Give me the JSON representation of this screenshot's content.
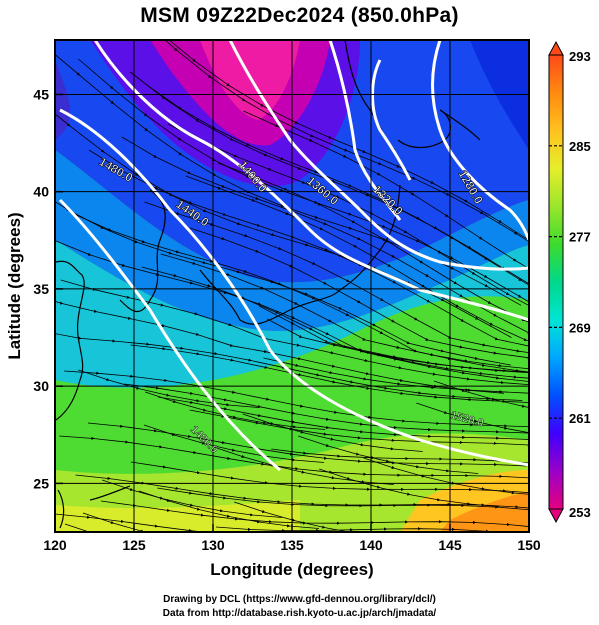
{
  "title": "MSM 09Z22Dec2024 (850.0hPa)",
  "xlabel": "Longitude (degrees)",
  "ylabel": "Latitude  (degrees)",
  "x_ticks": [
    "120",
    "125",
    "130",
    "135",
    "140",
    "145",
    "150"
  ],
  "y_ticks": [
    "25",
    "30",
    "35",
    "40",
    "45"
  ],
  "colorbar": {
    "min": 253,
    "max": 293,
    "ticks": [
      "261",
      "269",
      "277",
      "285"
    ],
    "max_label": "293",
    "min_label": "253",
    "colors": [
      "#e6007e",
      "#9a00c8",
      "#3f00ff",
      "#0050ff",
      "#00a6ff",
      "#00e5d5",
      "#00d88a",
      "#3ddc2c",
      "#9ae62b",
      "#e6ee2a",
      "#ffc21f",
      "#ff8a10",
      "#ff4a1a"
    ]
  },
  "contour_labels": [
    "1480.0",
    "1440.0",
    "1400.0",
    "1360.0",
    "1320.0",
    "1280.0",
    "1480.0",
    "1520.0"
  ],
  "credits": {
    "line1": "Drawing by DCL (https://www.gfd-dennou.org/library/dcl/)",
    "line2": "Data from http://database.rish.kyoto-u.ac.jp/arch/jmadata/"
  }
}
